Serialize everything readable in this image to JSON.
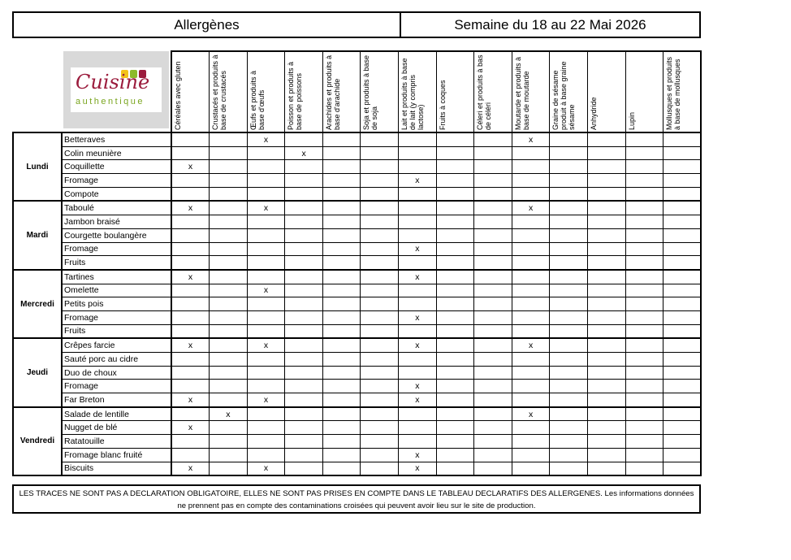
{
  "header": {
    "title": "Allergènes",
    "week": "Semaine du 18 au 22 Mai 2026"
  },
  "logo": {
    "text1": "Cuisine",
    "text2": "authentique"
  },
  "allergens": [
    "Céréales avec gluten",
    "Crustacés et produits à base de crustacés",
    "Œufs et produits à base d'œufs",
    "Poisson et produits à base de poissons",
    "Arachides et produits à base d'arachide",
    "Soja et produits à base de soja",
    "Lait et produits à base de lait (y compris lactose)",
    "Fruits à coques",
    "Céleri et produits à bas de céléri",
    "Moutarde et produits à base de moutarde",
    "Graine de sésame produit à base graine sésame",
    "Anhydride",
    "Lupin",
    "Mollusques et produits à base de mollusques"
  ],
  "mark": "x",
  "days": [
    {
      "day": "Lundi",
      "dishes": [
        {
          "name": "Betteraves",
          "allergens": [
            3,
            10
          ]
        },
        {
          "name": "Colin meunière",
          "allergens": [
            4
          ]
        },
        {
          "name": "Coquillette",
          "allergens": [
            1
          ]
        },
        {
          "name": "Fromage",
          "allergens": [
            7
          ]
        },
        {
          "name": "Compote",
          "allergens": []
        }
      ]
    },
    {
      "day": "Mardi",
      "dishes": [
        {
          "name": "Taboulé",
          "allergens": [
            1,
            3,
            10
          ]
        },
        {
          "name": "Jambon braisé",
          "allergens": []
        },
        {
          "name": "Courgette boulangère",
          "allergens": []
        },
        {
          "name": "Fromage",
          "allergens": [
            7
          ]
        },
        {
          "name": "Fruits",
          "allergens": []
        }
      ]
    },
    {
      "day": "Mercredi",
      "dishes": [
        {
          "name": "Tartines",
          "allergens": [
            1,
            7
          ]
        },
        {
          "name": "Omelette",
          "allergens": [
            3
          ]
        },
        {
          "name": "Petits pois",
          "allergens": []
        },
        {
          "name": "Fromage",
          "allergens": [
            7
          ]
        },
        {
          "name": "Fruits",
          "allergens": []
        }
      ]
    },
    {
      "day": "Jeudi",
      "dishes": [
        {
          "name": "Crêpes farcie",
          "allergens": [
            1,
            3,
            7,
            10
          ]
        },
        {
          "name": "Sauté porc au cidre",
          "allergens": []
        },
        {
          "name": "Duo de choux",
          "allergens": []
        },
        {
          "name": "Fromage",
          "allergens": [
            7
          ]
        },
        {
          "name": "Far Breton",
          "allergens": [
            1,
            3,
            7
          ]
        }
      ]
    },
    {
      "day": "Vendredi",
      "dishes": [
        {
          "name": "Salade de lentille",
          "allergens": [
            2,
            10
          ]
        },
        {
          "name": "Nugget de blé",
          "allergens": [
            1
          ]
        },
        {
          "name": "Ratatouille",
          "allergens": []
        },
        {
          "name": "Fromage blanc fruité",
          "allergens": [
            7
          ]
        },
        {
          "name": "Biscuits",
          "allergens": [
            1,
            3,
            7
          ]
        }
      ]
    }
  ],
  "footer": {
    "note": "LES TRACES NE SONT PAS A DECLARATION OBLIGATOIRE, ELLES NE SONT PAS PRISES EN COMPTE DANS LE TABLEAU DECLARATIFS DES ALLERGENES. Les informations données ne prennent pas en compte des contaminations croisées qui peuvent avoir lieu sur le site de production."
  }
}
